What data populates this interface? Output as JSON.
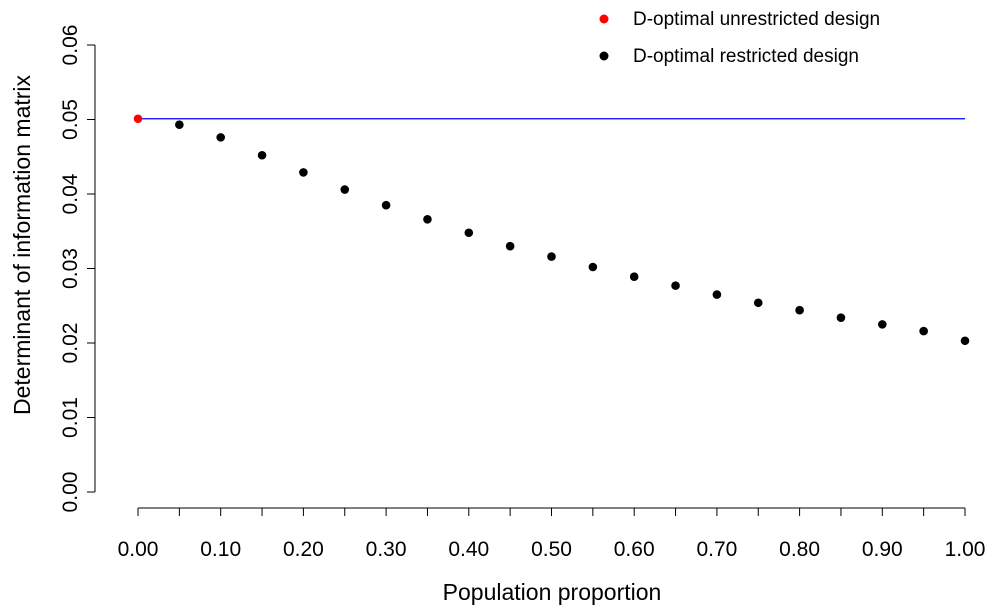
{
  "chart_data": {
    "type": "scatter",
    "xlabel": "Population proportion",
    "ylabel": "Determinant of information matrix",
    "xlim": [
      0,
      1
    ],
    "ylim": [
      0,
      0.06
    ],
    "x_ticks": [
      "0.00",
      "0.10",
      "0.20",
      "0.30",
      "0.40",
      "0.50",
      "0.60",
      "0.70",
      "0.80",
      "0.90",
      "1.00"
    ],
    "y_ticks": [
      "0.00",
      "0.01",
      "0.02",
      "0.03",
      "0.04",
      "0.05",
      "0.06"
    ],
    "reference_line": {
      "y": 0.0501,
      "color": "#0000ff"
    },
    "legend_position": "top-right",
    "series": [
      {
        "name": "D-optimal unrestricted design",
        "color": "#ff0000",
        "points": [
          {
            "x": 0.0,
            "y": 0.0501
          }
        ]
      },
      {
        "name": "D-optimal restricted design",
        "color": "#000000",
        "points": [
          {
            "x": 0.05,
            "y": 0.0493
          },
          {
            "x": 0.1,
            "y": 0.0476
          },
          {
            "x": 0.15,
            "y": 0.0452
          },
          {
            "x": 0.2,
            "y": 0.0429
          },
          {
            "x": 0.25,
            "y": 0.0406
          },
          {
            "x": 0.3,
            "y": 0.0385
          },
          {
            "x": 0.35,
            "y": 0.0366
          },
          {
            "x": 0.4,
            "y": 0.0348
          },
          {
            "x": 0.45,
            "y": 0.033
          },
          {
            "x": 0.5,
            "y": 0.0316
          },
          {
            "x": 0.55,
            "y": 0.0302
          },
          {
            "x": 0.6,
            "y": 0.0289
          },
          {
            "x": 0.65,
            "y": 0.0277
          },
          {
            "x": 0.7,
            "y": 0.0265
          },
          {
            "x": 0.75,
            "y": 0.0254
          },
          {
            "x": 0.8,
            "y": 0.0244
          },
          {
            "x": 0.85,
            "y": 0.0234
          },
          {
            "x": 0.9,
            "y": 0.0225
          },
          {
            "x": 0.95,
            "y": 0.0216
          },
          {
            "x": 1.0,
            "y": 0.0203
          }
        ]
      }
    ]
  }
}
